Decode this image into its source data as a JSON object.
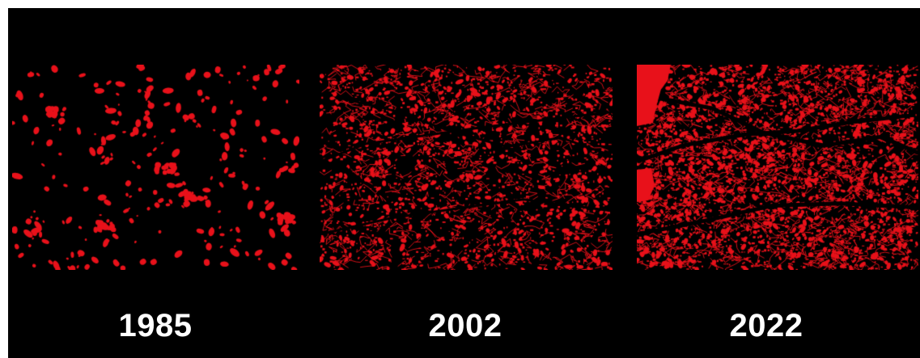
{
  "colors": {
    "background": "#000000",
    "built_up": "#e8111a",
    "label": "#ffffff"
  },
  "panels": [
    {
      "year": "1985",
      "density": 0.1
    },
    {
      "year": "2002",
      "density": 0.45
    },
    {
      "year": "2022",
      "density": 0.75
    }
  ]
}
